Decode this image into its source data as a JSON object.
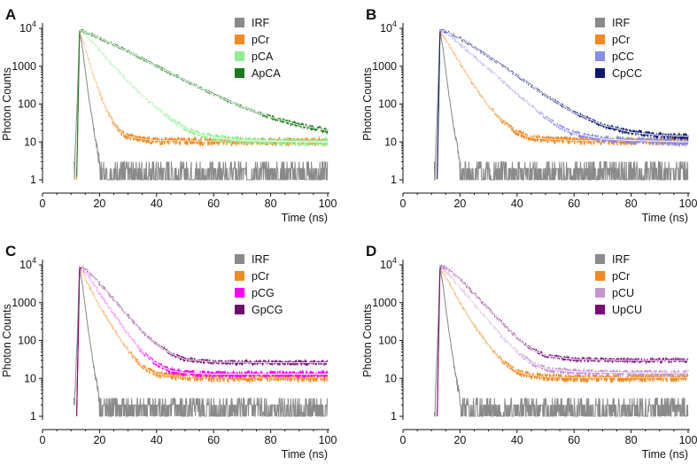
{
  "chart_data": [
    {
      "panel": "A",
      "type": "line",
      "xlabel": "Time (ns)",
      "ylabel": "Photon Counts",
      "xlim": [
        0,
        100
      ],
      "ylim": [
        1,
        10000
      ],
      "yscale": "log",
      "x_ticks": [
        "0",
        "20",
        "40",
        "60",
        "80",
        "100"
      ],
      "y_ticks": [
        "1",
        "10",
        "100",
        "1000",
        "10⁴"
      ],
      "legend_position": "top-right",
      "series": [
        {
          "name": "IRF",
          "color": "#8a8a8a",
          "x": [
            11,
            12,
            13,
            14,
            16,
            18,
            20,
            22,
            30,
            40,
            60,
            80,
            100
          ],
          "y": [
            1,
            50,
            9000,
            3000,
            200,
            20,
            3,
            1.5,
            1.3,
            1.3,
            1.3,
            1.3,
            1.3
          ]
        },
        {
          "name": "pCr",
          "color": "#f28a20",
          "x": [
            12,
            13,
            15,
            18,
            20,
            22,
            25,
            28,
            30,
            35,
            40,
            60,
            80,
            100
          ],
          "y": [
            1,
            8800,
            3000,
            520,
            200,
            82,
            30,
            17,
            14,
            12,
            11,
            10.5,
            10.5,
            10.5
          ]
        },
        {
          "name": "pCA",
          "color": "#90ee90",
          "x": [
            12,
            13,
            15,
            20,
            25,
            30,
            35,
            40,
            45,
            50,
            55,
            60,
            70,
            80,
            90,
            100
          ],
          "y": [
            1,
            9000,
            7000,
            2600,
            1000,
            400,
            170,
            80,
            40,
            23,
            16,
            13,
            11,
            10.5,
            10.2,
            10
          ]
        },
        {
          "name": "ApCA",
          "color": "#1a7a1a",
          "x": [
            12,
            13,
            15,
            20,
            30,
            40,
            50,
            60,
            70,
            80,
            90,
            100
          ],
          "y": [
            1,
            9000,
            8000,
            5500,
            2500,
            1000,
            420,
            180,
            85,
            45,
            28,
            20
          ]
        }
      ],
      "fit_color": "#ffffff"
    },
    {
      "panel": "B",
      "type": "line",
      "xlabel": "Time (ns)",
      "ylabel": "Photon Counts",
      "xlim": [
        0,
        100
      ],
      "ylim": [
        1,
        10000
      ],
      "yscale": "log",
      "x_ticks": [
        "0",
        "20",
        "40",
        "60",
        "80",
        "100"
      ],
      "y_ticks": [
        "1",
        "10",
        "100",
        "1000",
        "10⁴"
      ],
      "legend_position": "top-right",
      "series": [
        {
          "name": "IRF",
          "color": "#8a8a8a",
          "x": [
            11,
            12,
            13,
            14,
            16,
            18,
            20,
            22,
            30,
            40,
            60,
            80,
            100
          ],
          "y": [
            1,
            50,
            9000,
            3000,
            200,
            20,
            3,
            1.5,
            1.3,
            1.3,
            1.3,
            1.3,
            1.3
          ]
        },
        {
          "name": "pCr",
          "color": "#f28a20",
          "x": [
            12,
            13,
            15,
            20,
            25,
            30,
            35,
            40,
            45,
            50,
            60,
            80,
            100
          ],
          "y": [
            1,
            8800,
            5000,
            1200,
            300,
            90,
            35,
            18,
            13,
            12,
            11,
            10.5,
            10.5
          ]
        },
        {
          "name": "pCC",
          "color": "#8a8ae8",
          "x": [
            12,
            13,
            15,
            20,
            25,
            30,
            35,
            40,
            45,
            50,
            55,
            60,
            70,
            80,
            90,
            100
          ],
          "y": [
            1,
            9000,
            8000,
            3800,
            1800,
            850,
            400,
            190,
            90,
            45,
            25,
            17,
            12,
            11,
            10.5,
            10
          ]
        },
        {
          "name": "CpCC",
          "color": "#0c1a6e",
          "x": [
            12,
            13,
            15,
            20,
            30,
            40,
            50,
            60,
            70,
            80,
            90,
            100
          ],
          "y": [
            1,
            9000,
            8500,
            5500,
            1800,
            560,
            170,
            60,
            28,
            18,
            15,
            14
          ]
        }
      ],
      "fit_color": "#ffffff"
    },
    {
      "panel": "C",
      "type": "line",
      "xlabel": "Time (ns)",
      "ylabel": "Photon Counts",
      "xlim": [
        0,
        100
      ],
      "ylim": [
        1,
        10000
      ],
      "yscale": "log",
      "x_ticks": [
        "0",
        "20",
        "40",
        "60",
        "80",
        "100"
      ],
      "y_ticks": [
        "1",
        "10",
        "100",
        "1000",
        "10⁴"
      ],
      "legend_position": "top-right",
      "series": [
        {
          "name": "IRF",
          "color": "#8a8a8a",
          "x": [
            11,
            12,
            13,
            14,
            16,
            18,
            20,
            22,
            30,
            40,
            60,
            80,
            100
          ],
          "y": [
            1,
            50,
            9000,
            3000,
            200,
            20,
            3,
            1.5,
            1.3,
            1.3,
            1.3,
            1.3,
            1.3
          ]
        },
        {
          "name": "pCr",
          "color": "#f28a20",
          "x": [
            12,
            13,
            15,
            20,
            25,
            30,
            35,
            40,
            50,
            60,
            80,
            100
          ],
          "y": [
            1,
            8800,
            4500,
            800,
            200,
            55,
            20,
            13,
            11,
            10.5,
            10.5,
            10.5
          ]
        },
        {
          "name": "pCG",
          "color": "#ff00ff",
          "x": [
            12,
            13,
            15,
            20,
            25,
            30,
            35,
            40,
            45,
            50,
            60,
            80,
            100
          ],
          "y": [
            1,
            9000,
            6500,
            1800,
            500,
            150,
            50,
            24,
            16,
            14,
            13,
            13,
            13
          ]
        },
        {
          "name": "GpCG",
          "color": "#6e0c6e",
          "x": [
            12,
            13,
            15,
            20,
            25,
            30,
            35,
            40,
            45,
            50,
            60,
            80,
            100
          ],
          "y": [
            1,
            9000,
            8000,
            3200,
            1200,
            450,
            170,
            80,
            45,
            32,
            27,
            26,
            26
          ]
        }
      ],
      "fit_color": "#ffffff"
    },
    {
      "panel": "D",
      "type": "line",
      "xlabel": "Time (ns)",
      "ylabel": "Photon Counts",
      "xlim": [
        0,
        100
      ],
      "ylim": [
        1,
        10000
      ],
      "yscale": "log",
      "x_ticks": [
        "0",
        "20",
        "40",
        "60",
        "80",
        "100"
      ],
      "y_ticks": [
        "1",
        "10",
        "100",
        "1000",
        "10⁴"
      ],
      "legend_position": "top-right",
      "series": [
        {
          "name": "IRF",
          "color": "#8a8a8a",
          "x": [
            11,
            12,
            13,
            14,
            16,
            18,
            20,
            22,
            30,
            40,
            60,
            80,
            100
          ],
          "y": [
            1,
            50,
            9000,
            3000,
            200,
            20,
            3,
            1.5,
            1.3,
            1.3,
            1.3,
            1.3,
            1.3
          ]
        },
        {
          "name": "pCr",
          "color": "#f28a20",
          "x": [
            12,
            13,
            15,
            20,
            25,
            30,
            35,
            40,
            45,
            50,
            60,
            80,
            100
          ],
          "y": [
            1,
            8800,
            4800,
            1000,
            250,
            75,
            28,
            15,
            12,
            11,
            10.5,
            10.5,
            10.5
          ]
        },
        {
          "name": "pCU",
          "color": "#c496d2",
          "x": [
            12,
            13,
            15,
            20,
            25,
            30,
            35,
            40,
            45,
            50,
            60,
            80,
            100
          ],
          "y": [
            1,
            9000,
            7000,
            2500,
            900,
            330,
            120,
            50,
            26,
            18,
            15,
            14,
            14
          ]
        },
        {
          "name": "UpCU",
          "color": "#7a0a7a",
          "x": [
            12,
            13,
            15,
            20,
            25,
            30,
            35,
            40,
            45,
            50,
            60,
            80,
            100
          ],
          "y": [
            1,
            9000,
            8500,
            4200,
            1700,
            700,
            280,
            120,
            60,
            40,
            32,
            30,
            30
          ]
        }
      ],
      "fit_color": "#ffffff"
    }
  ]
}
